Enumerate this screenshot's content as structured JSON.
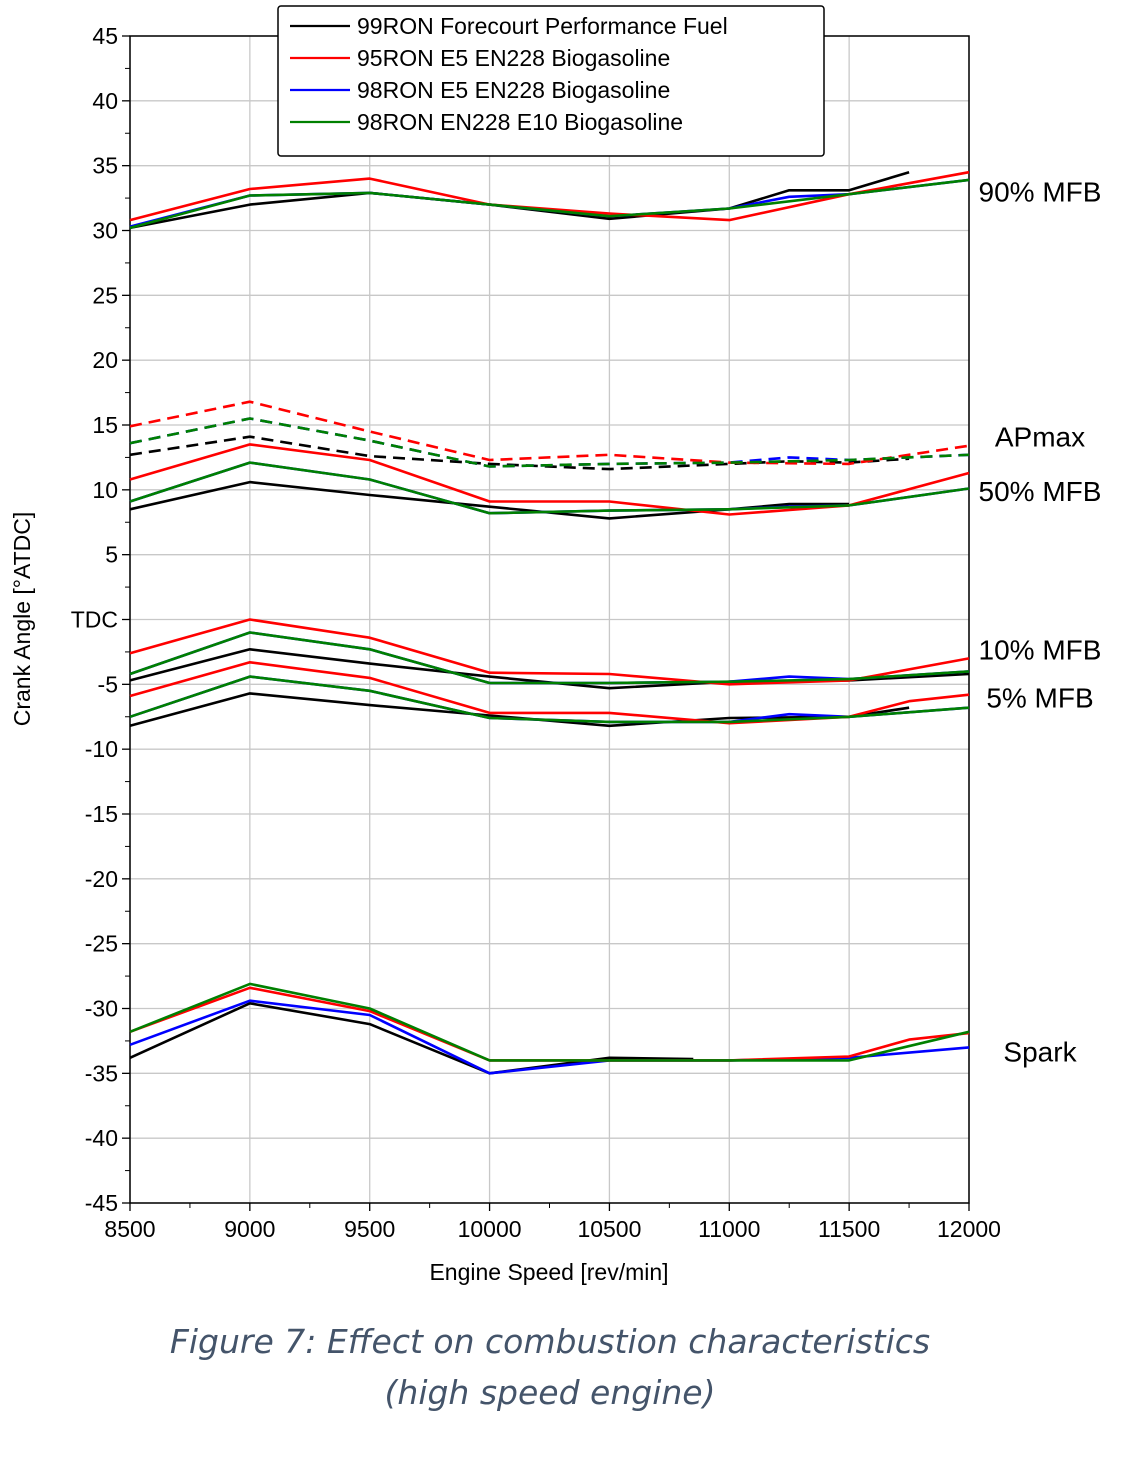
{
  "chart_data": {
    "type": "line",
    "xlabel": "Engine Speed [rev/min]",
    "ylabel": "Crank Angle [°ATDC]",
    "xlim": [
      8500,
      12000
    ],
    "ylim": [
      -45,
      45
    ],
    "x_ticks": [
      8500,
      9000,
      9500,
      10000,
      10500,
      11000,
      11500,
      12000
    ],
    "y_ticks": [
      45,
      40,
      35,
      30,
      25,
      20,
      15,
      10,
      5,
      0,
      -5,
      -10,
      -15,
      -20,
      -25,
      -30,
      -35,
      -40,
      -45
    ],
    "y_tick_labels": [
      "45",
      "40",
      "35",
      "30",
      "25",
      "20",
      "15",
      "10",
      "5",
      "TDC",
      "-5",
      "-10",
      "-15",
      "-20",
      "-25",
      "-30",
      "-35",
      "-40",
      "-45"
    ],
    "grid": true,
    "legend_position": "top-center",
    "legend": [
      {
        "name": "99RON Forecourt Performance Fuel",
        "color": "#000000"
      },
      {
        "name": "95RON E5 EN228 Biogasoline",
        "color": "#ff0000"
      },
      {
        "name": "98RON E5 EN228 Biogasoline",
        "color": "#0000ff"
      },
      {
        "name": "98RON EN228 E10 Biogasoline",
        "color": "#008000"
      }
    ],
    "groups": [
      {
        "label": "90% MFB",
        "label_y": 33,
        "series": [
          {
            "fuel": 0,
            "points": [
              [
                8500,
                30.2
              ],
              [
                9000,
                32.0
              ],
              [
                9500,
                32.9
              ],
              [
                10000,
                32.0
              ],
              [
                10500,
                30.9
              ],
              [
                11000,
                31.7
              ],
              [
                11250,
                33.1
              ],
              [
                11500,
                33.1
              ],
              [
                11750,
                34.5
              ]
            ]
          },
          {
            "fuel": 2,
            "points": [
              [
                8500,
                30.3
              ],
              [
                9000,
                32.7
              ],
              [
                9500,
                32.9
              ],
              [
                10000,
                32.0
              ],
              [
                10500,
                31.1
              ],
              [
                11000,
                31.7
              ],
              [
                11250,
                32.6
              ],
              [
                11500,
                32.8
              ],
              [
                12000,
                33.9
              ]
            ]
          },
          {
            "fuel": 1,
            "points": [
              [
                8500,
                30.8
              ],
              [
                9000,
                33.2
              ],
              [
                9500,
                34.0
              ],
              [
                10000,
                32.0
              ],
              [
                10500,
                31.3
              ],
              [
                11000,
                30.8
              ],
              [
                11500,
                32.8
              ],
              [
                12000,
                34.5
              ]
            ]
          },
          {
            "fuel": 3,
            "points": [
              [
                8500,
                30.2
              ],
              [
                9000,
                32.7
              ],
              [
                9500,
                32.9
              ],
              [
                10000,
                32.0
              ],
              [
                10500,
                31.1
              ],
              [
                11000,
                31.7
              ],
              [
                11500,
                32.8
              ],
              [
                12000,
                33.9
              ]
            ]
          }
        ]
      },
      {
        "label": "APmax",
        "label_y": 14.1,
        "dashed": true,
        "series": [
          {
            "fuel": 0,
            "points": [
              [
                8500,
                12.7
              ],
              [
                9000,
                14.1
              ],
              [
                9500,
                12.6
              ],
              [
                10000,
                12.0
              ],
              [
                10500,
                11.6
              ],
              [
                11000,
                12.0
              ],
              [
                11250,
                12.2
              ],
              [
                11500,
                12.1
              ],
              [
                11750,
                12.4
              ]
            ]
          },
          {
            "fuel": 2,
            "points": [
              [
                8500,
                13.6
              ],
              [
                9000,
                15.5
              ],
              [
                9500,
                13.8
              ],
              [
                10000,
                11.8
              ],
              [
                10500,
                12.0
              ],
              [
                11000,
                12.1
              ],
              [
                11250,
                12.5
              ],
              [
                11500,
                12.3
              ],
              [
                12000,
                12.7
              ]
            ]
          },
          {
            "fuel": 1,
            "points": [
              [
                8500,
                14.9
              ],
              [
                9000,
                16.8
              ],
              [
                9500,
                14.5
              ],
              [
                10000,
                12.3
              ],
              [
                10500,
                12.7
              ],
              [
                11000,
                12.1
              ],
              [
                11500,
                12.0
              ],
              [
                12000,
                13.4
              ]
            ]
          },
          {
            "fuel": 3,
            "points": [
              [
                8500,
                13.6
              ],
              [
                9000,
                15.5
              ],
              [
                9500,
                13.8
              ],
              [
                10000,
                11.8
              ],
              [
                10500,
                12.0
              ],
              [
                11000,
                12.1
              ],
              [
                11500,
                12.3
              ],
              [
                12000,
                12.7
              ]
            ]
          }
        ]
      },
      {
        "label": "50% MFB",
        "label_y": 9.9,
        "series": [
          {
            "fuel": 0,
            "points": [
              [
                8500,
                8.5
              ],
              [
                9000,
                10.6
              ],
              [
                9500,
                9.6
              ],
              [
                10000,
                8.7
              ],
              [
                10500,
                7.8
              ],
              [
                11000,
                8.5
              ],
              [
                11250,
                8.9
              ],
              [
                11500,
                8.9
              ]
            ]
          },
          {
            "fuel": 2,
            "points": [
              [
                8500,
                9.1
              ],
              [
                9000,
                12.1
              ],
              [
                9500,
                10.8
              ],
              [
                10000,
                8.2
              ],
              [
                10500,
                8.4
              ],
              [
                11000,
                8.5
              ],
              [
                11250,
                8.7
              ],
              [
                11500,
                8.8
              ],
              [
                12000,
                10.1
              ]
            ]
          },
          {
            "fuel": 1,
            "points": [
              [
                8500,
                10.8
              ],
              [
                9000,
                13.5
              ],
              [
                9500,
                12.3
              ],
              [
                10000,
                9.1
              ],
              [
                10500,
                9.1
              ],
              [
                11000,
                8.1
              ],
              [
                11500,
                8.8
              ],
              [
                12000,
                11.3
              ]
            ]
          },
          {
            "fuel": 3,
            "points": [
              [
                8500,
                9.1
              ],
              [
                9000,
                12.1
              ],
              [
                9500,
                10.8
              ],
              [
                10000,
                8.2
              ],
              [
                10500,
                8.4
              ],
              [
                11000,
                8.5
              ],
              [
                11500,
                8.8
              ],
              [
                12000,
                10.1
              ]
            ]
          }
        ]
      },
      {
        "label": "10% MFB",
        "label_y": -2.3,
        "series": [
          {
            "fuel": 0,
            "points": [
              [
                8500,
                -4.7
              ],
              [
                9000,
                -2.3
              ],
              [
                9500,
                -3.4
              ],
              [
                10000,
                -4.4
              ],
              [
                10500,
                -5.3
              ],
              [
                11000,
                -4.8
              ],
              [
                11500,
                -4.7
              ],
              [
                12000,
                -4.2
              ]
            ]
          },
          {
            "fuel": 2,
            "points": [
              [
                8500,
                -4.2
              ],
              [
                9000,
                -1.0
              ],
              [
                9500,
                -2.3
              ],
              [
                10000,
                -4.9
              ],
              [
                10500,
                -4.9
              ],
              [
                11000,
                -4.8
              ],
              [
                11250,
                -4.4
              ],
              [
                11500,
                -4.6
              ],
              [
                12000,
                -4.0
              ]
            ]
          },
          {
            "fuel": 1,
            "points": [
              [
                8500,
                -2.6
              ],
              [
                9000,
                0.0
              ],
              [
                9500,
                -1.4
              ],
              [
                10000,
                -4.1
              ],
              [
                10500,
                -4.2
              ],
              [
                11000,
                -5.0
              ],
              [
                11500,
                -4.7
              ],
              [
                12000,
                -3.0
              ]
            ]
          },
          {
            "fuel": 3,
            "points": [
              [
                8500,
                -4.2
              ],
              [
                9000,
                -1.0
              ],
              [
                9500,
                -2.3
              ],
              [
                10000,
                -4.9
              ],
              [
                10500,
                -4.9
              ],
              [
                11000,
                -4.8
              ],
              [
                11500,
                -4.6
              ],
              [
                12000,
                -4.0
              ]
            ]
          }
        ]
      },
      {
        "label": "5% MFB",
        "label_y": -6.0,
        "series": [
          {
            "fuel": 0,
            "points": [
              [
                8500,
                -8.2
              ],
              [
                9000,
                -5.7
              ],
              [
                9500,
                -6.6
              ],
              [
                10000,
                -7.4
              ],
              [
                10500,
                -8.2
              ],
              [
                11000,
                -7.6
              ],
              [
                11500,
                -7.5
              ],
              [
                11750,
                -6.8
              ]
            ]
          },
          {
            "fuel": 2,
            "points": [
              [
                8500,
                -7.5
              ],
              [
                9000,
                -4.4
              ],
              [
                9500,
                -5.5
              ],
              [
                10000,
                -7.6
              ],
              [
                10500,
                -7.9
              ],
              [
                11000,
                -7.9
              ],
              [
                11250,
                -7.3
              ],
              [
                11500,
                -7.5
              ],
              [
                12000,
                -6.8
              ]
            ]
          },
          {
            "fuel": 1,
            "points": [
              [
                8500,
                -5.9
              ],
              [
                9000,
                -3.3
              ],
              [
                9500,
                -4.5
              ],
              [
                10000,
                -7.2
              ],
              [
                10500,
                -7.2
              ],
              [
                11000,
                -8.0
              ],
              [
                11500,
                -7.5
              ],
              [
                11750,
                -6.3
              ],
              [
                12000,
                -5.8
              ]
            ]
          },
          {
            "fuel": 3,
            "points": [
              [
                8500,
                -7.5
              ],
              [
                9000,
                -4.4
              ],
              [
                9500,
                -5.5
              ],
              [
                10000,
                -7.6
              ],
              [
                10500,
                -7.9
              ],
              [
                11000,
                -7.9
              ],
              [
                11500,
                -7.5
              ],
              [
                12000,
                -6.8
              ]
            ]
          }
        ]
      },
      {
        "label": "Spark",
        "label_y": -33.3,
        "series": [
          {
            "fuel": 0,
            "points": [
              [
                8500,
                -33.8
              ],
              [
                9000,
                -29.6
              ],
              [
                9500,
                -31.2
              ],
              [
                10000,
                -35.0
              ],
              [
                10500,
                -33.8
              ],
              [
                10850,
                -33.9
              ]
            ]
          },
          {
            "fuel": 2,
            "points": [
              [
                8500,
                -32.8
              ],
              [
                9000,
                -29.4
              ],
              [
                9500,
                -30.5
              ],
              [
                10000,
                -35.0
              ],
              [
                10500,
                -34.0
              ],
              [
                11000,
                -34.0
              ],
              [
                11500,
                -33.8
              ],
              [
                12000,
                -33.0
              ]
            ]
          },
          {
            "fuel": 1,
            "points": [
              [
                8500,
                -31.8
              ],
              [
                9000,
                -28.4
              ],
              [
                9500,
                -30.2
              ],
              [
                10000,
                -34.0
              ],
              [
                10500,
                -34.0
              ],
              [
                11000,
                -34.0
              ],
              [
                11500,
                -33.7
              ],
              [
                11750,
                -32.4
              ],
              [
                12000,
                -31.9
              ]
            ]
          },
          {
            "fuel": 3,
            "points": [
              [
                8500,
                -31.8
              ],
              [
                9000,
                -28.1
              ],
              [
                9500,
                -30.0
              ],
              [
                10000,
                -34.0
              ],
              [
                10500,
                -34.0
              ],
              [
                11000,
                -34.0
              ],
              [
                11500,
                -34.0
              ],
              [
                12000,
                -31.8
              ]
            ]
          }
        ]
      }
    ]
  },
  "caption": {
    "line1": "Figure 7: Effect on combustion characteristics",
    "line2": "(high speed engine)"
  }
}
